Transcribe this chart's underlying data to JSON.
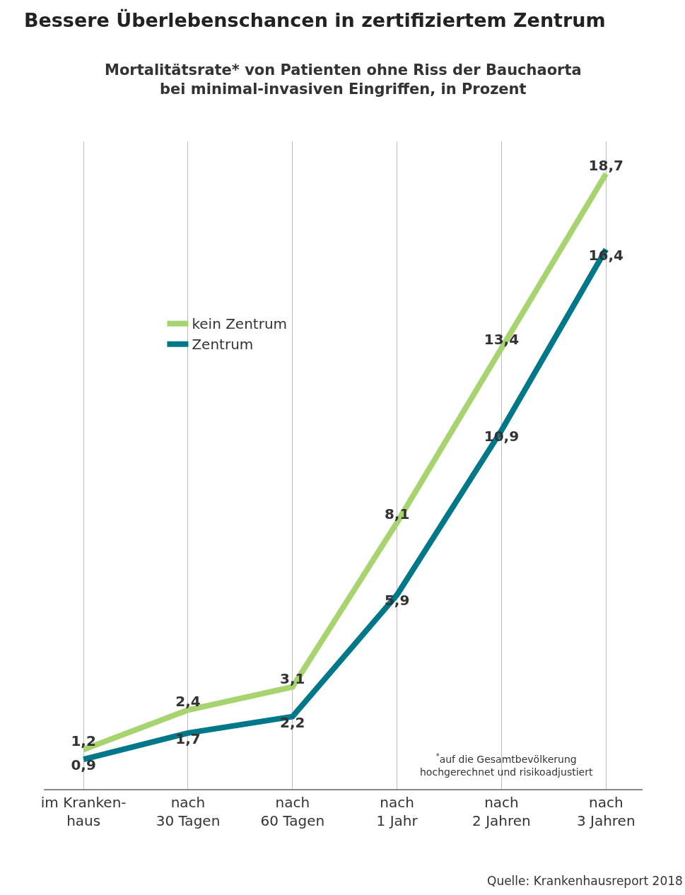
{
  "chart_data": {
    "type": "line",
    "title": "Bessere Überlebenschancen in zertifiziertem Zentrum",
    "subtitle": "Mortalitätsrate* von Patienten ohne Riss der Bauchaorta\nbei minimal-invasiven Eingriffen, in Prozent",
    "categories": [
      "im Kranken-\nhaus",
      "nach\n30 Tagen",
      "nach\n60 Tagen",
      "nach\n1 Jahr",
      "nach\n2 Jahren",
      "nach\n3 Jahren"
    ],
    "series": [
      {
        "name": "kein Zentrum",
        "color": "#a8d46f",
        "values": [
          1.2,
          2.4,
          3.1,
          8.1,
          13.4,
          18.7
        ],
        "value_labels": [
          "1,2",
          "2,4",
          "3,1",
          "8,1",
          "13,4",
          "18,7"
        ]
      },
      {
        "name": "Zentrum",
        "color": "#00788a",
        "values": [
          0.9,
          1.7,
          2.2,
          5.9,
          10.9,
          16.4
        ],
        "value_labels": [
          "0,9",
          "1,7",
          "2,2",
          "5,9",
          "10,9",
          "16,4"
        ]
      }
    ],
    "grid": "x",
    "legend": "top left",
    "marker": "none",
    "line_style": "solid",
    "annotations": [
      "$^{*}$auf die Gesamtbevölkerung\nhochgerechnet und risikoadjustiert",
      "Quelle: Krankenhausreport 2018"
    ]
  }
}
